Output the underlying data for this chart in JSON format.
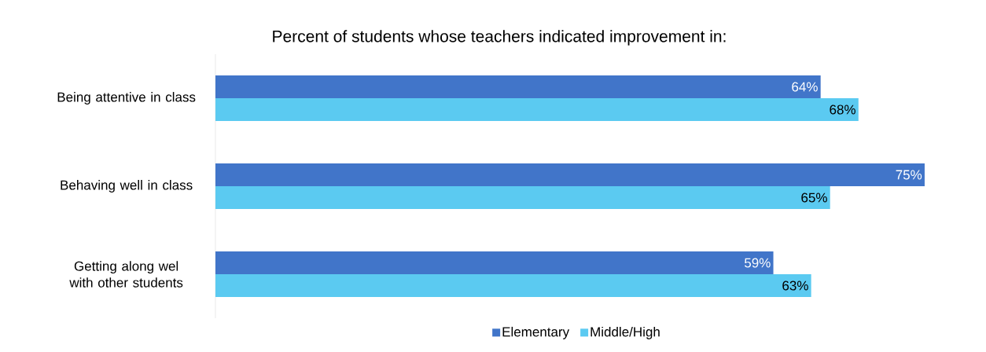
{
  "chart_data": {
    "type": "bar",
    "orientation": "horizontal",
    "title": "Percent of students whose teachers indicated improvement in:",
    "categories": [
      "Being attentive in class",
      "Behaving well in class",
      "Getting along wel with other students"
    ],
    "series": [
      {
        "name": "Elementary",
        "color": "#4175c9",
        "values": [
          64,
          75,
          59
        ],
        "value_labels": [
          "64%",
          "75%",
          "59%"
        ]
      },
      {
        "name": "Middle/High",
        "color": "#5bcaf1",
        "values": [
          68,
          65,
          63
        ],
        "value_labels": [
          "68%",
          "65%",
          "63%"
        ]
      }
    ],
    "tick_labels": "y",
    "legend": "bottom",
    "grid": false
  }
}
